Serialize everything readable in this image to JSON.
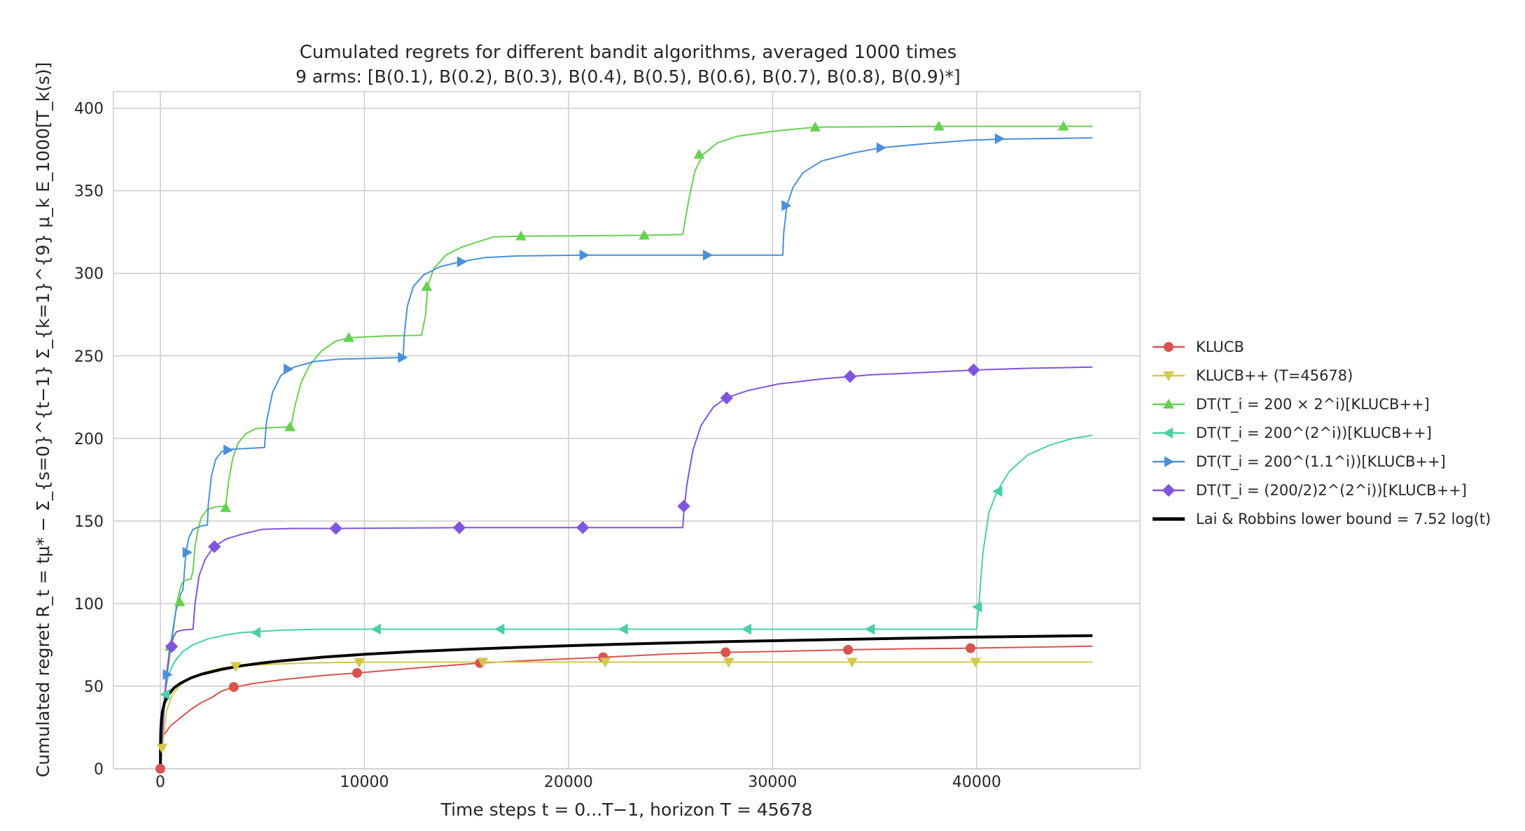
{
  "chart_data": {
    "type": "line",
    "title": "Cumulated regrets for different bandit algorithms, averaged 1000 times",
    "subtitle": "9 arms: [B(0.1), B(0.2), B(0.3), B(0.4), B(0.5), B(0.6), B(0.7), B(0.8), B(0.9)*]",
    "xlabel": "Time steps t = 0...T−1, horizon T = 45678",
    "ylabel": "Cumulated regret R_t = tμ* − Σ_{s=0}^{t−1} Σ_{k=1}^{9} μ_k E_1000[T_k(s)]",
    "xlim": [
      -2300,
      48000
    ],
    "ylim": [
      0,
      410
    ],
    "xticks": [
      0,
      10000,
      20000,
      30000,
      40000
    ],
    "xtick_labels": [
      "0",
      "10000",
      "20000",
      "30000",
      "40000"
    ],
    "yticks": [
      0,
      50,
      100,
      150,
      200,
      250,
      300,
      350,
      400
    ],
    "ytick_labels": [
      "0",
      "50",
      "100",
      "150",
      "200",
      "250",
      "300",
      "350",
      "400"
    ],
    "grid": true,
    "legend_position": "right",
    "series": [
      {
        "name": "KLUCB",
        "color": "#d9534f",
        "marker": "circle",
        "lw": 2,
        "points": [
          [
            0,
            0
          ],
          [
            150,
            20
          ],
          [
            500,
            26
          ],
          [
            1000,
            31
          ],
          [
            1500,
            36
          ],
          [
            2000,
            40
          ],
          [
            2500,
            43
          ],
          [
            3000,
            47
          ],
          [
            3500,
            49
          ],
          [
            4500,
            51.5
          ],
          [
            6000,
            54
          ],
          [
            8000,
            56.5
          ],
          [
            9640,
            58
          ],
          [
            12000,
            60.5
          ],
          [
            15660,
            64
          ],
          [
            18000,
            65.5
          ],
          [
            21700,
            67.5
          ],
          [
            25000,
            69.5
          ],
          [
            27700,
            70.5
          ],
          [
            30000,
            71
          ],
          [
            33700,
            72
          ],
          [
            36000,
            72.5
          ],
          [
            39700,
            73
          ],
          [
            45678,
            74.2
          ]
        ],
        "markers": [
          [
            0,
            0
          ],
          [
            3600,
            49.5
          ],
          [
            9640,
            58
          ],
          [
            15660,
            64
          ],
          [
            21700,
            67.5
          ],
          [
            27700,
            70.5
          ],
          [
            33700,
            72
          ],
          [
            39700,
            73
          ]
        ]
      },
      {
        "name": "KLUCB++ (T=45678)",
        "color": "#d4c84a",
        "marker": "triangle-down",
        "lw": 2,
        "points": [
          [
            0,
            0
          ],
          [
            100,
            13
          ],
          [
            300,
            35
          ],
          [
            600,
            45
          ],
          [
            1000,
            51
          ],
          [
            1500,
            55
          ],
          [
            2200,
            58.5
          ],
          [
            3000,
            61
          ],
          [
            3700,
            62
          ],
          [
            5000,
            63
          ],
          [
            7000,
            64
          ],
          [
            9750,
            64.5
          ],
          [
            15800,
            64.6
          ],
          [
            21800,
            64.6
          ],
          [
            27850,
            64.6
          ],
          [
            33900,
            64.6
          ],
          [
            39950,
            64.6
          ],
          [
            45678,
            64.6
          ]
        ],
        "markers": [
          [
            80,
            12.5
          ],
          [
            3700,
            62
          ],
          [
            9750,
            64.5
          ],
          [
            15800,
            64.6
          ],
          [
            21800,
            64.6
          ],
          [
            27850,
            64.6
          ],
          [
            33900,
            64.6
          ],
          [
            39950,
            64.6
          ]
        ]
      },
      {
        "name": "DT(T_i = 200 × 2^i)[KLUCB++]",
        "color": "#66d150",
        "marker": "triangle-up",
        "lw": 2,
        "points": [
          [
            0,
            0
          ],
          [
            100,
            30
          ],
          [
            200,
            45
          ],
          [
            350,
            58
          ],
          [
            500,
            72
          ],
          [
            650,
            85
          ],
          [
            800,
            100
          ],
          [
            950,
            108
          ],
          [
            1050,
            112
          ],
          [
            1200,
            114
          ],
          [
            1500,
            115
          ],
          [
            1600,
            120
          ],
          [
            1700,
            135
          ],
          [
            1850,
            145
          ],
          [
            2000,
            152
          ],
          [
            2300,
            157
          ],
          [
            2700,
            158.5
          ],
          [
            3200,
            159
          ],
          [
            3350,
            175
          ],
          [
            3550,
            188
          ],
          [
            3800,
            197
          ],
          [
            4200,
            203
          ],
          [
            4700,
            206
          ],
          [
            5400,
            206.5
          ],
          [
            6400,
            207
          ],
          [
            6600,
            220
          ],
          [
            6900,
            234
          ],
          [
            7300,
            244
          ],
          [
            7900,
            253
          ],
          [
            8600,
            259
          ],
          [
            9300,
            261
          ],
          [
            11000,
            262
          ],
          [
            12800,
            262.5
          ],
          [
            13000,
            275
          ],
          [
            13100,
            292
          ],
          [
            13400,
            303
          ],
          [
            14000,
            311
          ],
          [
            14800,
            316
          ],
          [
            16300,
            322
          ],
          [
            17700,
            322.5
          ],
          [
            23700,
            323
          ],
          [
            25600,
            323.5
          ],
          [
            25900,
            345
          ],
          [
            26200,
            362
          ],
          [
            26600,
            372
          ],
          [
            27300,
            379
          ],
          [
            28300,
            383
          ],
          [
            30000,
            386
          ],
          [
            32100,
            388.5
          ],
          [
            38200,
            389
          ],
          [
            44300,
            389
          ],
          [
            45678,
            389
          ]
        ],
        "markers": [
          [
            480,
            74
          ],
          [
            950,
            101
          ],
          [
            3200,
            158
          ],
          [
            6350,
            207
          ],
          [
            9230,
            261
          ],
          [
            13050,
            292
          ],
          [
            17670,
            322.5
          ],
          [
            23710,
            323
          ],
          [
            26400,
            372
          ],
          [
            32090,
            388.5
          ],
          [
            38150,
            389
          ],
          [
            44250,
            389
          ]
        ]
      },
      {
        "name": "DT(T_i = 200^(2^i))[KLUCB++]",
        "color": "#48d1a5",
        "marker": "triangle-left",
        "lw": 2,
        "points": [
          [
            0,
            0
          ],
          [
            100,
            20
          ],
          [
            200,
            45
          ],
          [
            400,
            57
          ],
          [
            700,
            65
          ],
          [
            1100,
            71
          ],
          [
            1600,
            75
          ],
          [
            2300,
            78.5
          ],
          [
            3200,
            81
          ],
          [
            4000,
            82.5
          ],
          [
            4800,
            83
          ],
          [
            6000,
            84
          ],
          [
            8000,
            84.5
          ],
          [
            10600,
            84.5
          ],
          [
            16700,
            84.5
          ],
          [
            22700,
            84.5
          ],
          [
            28800,
            84.5
          ],
          [
            34800,
            84.5
          ],
          [
            40000,
            84.5
          ],
          [
            40100,
            98
          ],
          [
            40300,
            130
          ],
          [
            40600,
            155
          ],
          [
            41000,
            168
          ],
          [
            41600,
            180
          ],
          [
            42500,
            190
          ],
          [
            43600,
            196
          ],
          [
            44700,
            200
          ],
          [
            45678,
            202
          ]
        ],
        "markers": [
          [
            250,
            45
          ],
          [
            4700,
            82.5
          ],
          [
            10600,
            84.5
          ],
          [
            16650,
            84.5
          ],
          [
            22700,
            84.5
          ],
          [
            28750,
            84.5
          ],
          [
            34800,
            84.5
          ],
          [
            40050,
            98
          ],
          [
            41050,
            168
          ]
        ]
      },
      {
        "name": "DT(T_i = 200^(1.1^i))[KLUCB++]",
        "color": "#4a90d9",
        "marker": "triangle-right",
        "lw": 2,
        "points": [
          [
            0,
            0
          ],
          [
            100,
            20
          ],
          [
            300,
            57
          ],
          [
            500,
            75
          ],
          [
            750,
            95
          ],
          [
            1000,
            106
          ],
          [
            1100,
            108
          ],
          [
            1150,
            115
          ],
          [
            1250,
            131
          ],
          [
            1400,
            140
          ],
          [
            1600,
            145
          ],
          [
            2000,
            147
          ],
          [
            2300,
            147.5
          ],
          [
            2350,
            160
          ],
          [
            2500,
            177
          ],
          [
            2700,
            187
          ],
          [
            3000,
            192
          ],
          [
            3500,
            193.5
          ],
          [
            4300,
            194
          ],
          [
            5100,
            194.5
          ],
          [
            5200,
            210
          ],
          [
            5500,
            228
          ],
          [
            5900,
            238
          ],
          [
            6500,
            243
          ],
          [
            7500,
            246.5
          ],
          [
            8700,
            248
          ],
          [
            11900,
            249
          ],
          [
            11950,
            262
          ],
          [
            12100,
            280
          ],
          [
            12400,
            292
          ],
          [
            12900,
            299
          ],
          [
            13700,
            304
          ],
          [
            14700,
            307
          ],
          [
            15900,
            309.5
          ],
          [
            17500,
            310.5
          ],
          [
            20700,
            311
          ],
          [
            26800,
            311
          ],
          [
            30500,
            311
          ],
          [
            30550,
            325
          ],
          [
            30700,
            341
          ],
          [
            31000,
            352
          ],
          [
            31500,
            361
          ],
          [
            32400,
            368
          ],
          [
            34000,
            373
          ],
          [
            35300,
            376
          ],
          [
            37500,
            378.5
          ],
          [
            39600,
            380.5
          ],
          [
            41100,
            381.2
          ],
          [
            45678,
            382
          ]
        ],
        "markers": [
          [
            330,
            57
          ],
          [
            1300,
            131
          ],
          [
            3300,
            193
          ],
          [
            6250,
            242
          ],
          [
            11850,
            249
          ],
          [
            14750,
            307
          ],
          [
            20750,
            311
          ],
          [
            26800,
            311
          ],
          [
            30650,
            341
          ],
          [
            35300,
            376
          ],
          [
            41100,
            381.5
          ]
        ]
      },
      {
        "name": "DT(T_i = (200/2)2^(2^i))[KLUCB++]",
        "color": "#8055dd",
        "marker": "diamond",
        "lw": 2,
        "points": [
          [
            0,
            0
          ],
          [
            100,
            20
          ],
          [
            250,
            50
          ],
          [
            450,
            72
          ],
          [
            650,
            80
          ],
          [
            800,
            83
          ],
          [
            1100,
            84
          ],
          [
            1600,
            84.5
          ],
          [
            1700,
            100
          ],
          [
            1900,
            117
          ],
          [
            2200,
            127
          ],
          [
            2600,
            134
          ],
          [
            3200,
            139
          ],
          [
            4000,
            142
          ],
          [
            5000,
            145
          ],
          [
            6500,
            145.5
          ],
          [
            8600,
            145.5
          ],
          [
            14700,
            146
          ],
          [
            20700,
            146
          ],
          [
            25600,
            146
          ],
          [
            25650,
            155
          ],
          [
            25800,
            172
          ],
          [
            26100,
            193
          ],
          [
            26500,
            208
          ],
          [
            27100,
            219
          ],
          [
            27700,
            224.5
          ],
          [
            28800,
            229
          ],
          [
            30300,
            233
          ],
          [
            32400,
            236
          ],
          [
            34800,
            238.5
          ],
          [
            37500,
            240
          ],
          [
            40100,
            241.5
          ],
          [
            42500,
            242.5
          ],
          [
            45678,
            243.2
          ]
        ],
        "markers": [
          [
            550,
            74
          ],
          [
            2650,
            134.5
          ],
          [
            8600,
            145.5
          ],
          [
            14650,
            146
          ],
          [
            20700,
            146
          ],
          [
            25650,
            159
          ],
          [
            27750,
            224.5
          ],
          [
            33800,
            237.5
          ],
          [
            39850,
            241.5
          ]
        ]
      },
      {
        "name": "Lai & Robbins lower bound = 7.52 log(t)",
        "color": "#000000",
        "marker": "none",
        "lw": 4,
        "function": "7.52*ln(t)",
        "points": [
          [
            1,
            0
          ],
          [
            5,
            12.1
          ],
          [
            20,
            22.5
          ],
          [
            50,
            29.4
          ],
          [
            100,
            34.6
          ],
          [
            200,
            39.8
          ],
          [
            400,
            45.1
          ],
          [
            700,
            49.3
          ],
          [
            1000,
            51.9
          ],
          [
            1500,
            55.0
          ],
          [
            2000,
            57.2
          ],
          [
            3000,
            60.2
          ],
          [
            4000,
            62.4
          ],
          [
            5000,
            64.1
          ],
          [
            6000,
            65.4
          ],
          [
            8000,
            67.6
          ],
          [
            10000,
            69.3
          ],
          [
            12500,
            71.0
          ],
          [
            15000,
            72.3
          ],
          [
            17500,
            73.5
          ],
          [
            20000,
            74.5
          ],
          [
            22500,
            75.4
          ],
          [
            25000,
            76.2
          ],
          [
            27500,
            76.9
          ],
          [
            30000,
            77.5
          ],
          [
            32500,
            78.1
          ],
          [
            35000,
            78.7
          ],
          [
            37500,
            79.2
          ],
          [
            40000,
            79.7
          ],
          [
            42500,
            80.1
          ],
          [
            45678,
            80.6
          ]
        ],
        "markers": []
      }
    ]
  }
}
